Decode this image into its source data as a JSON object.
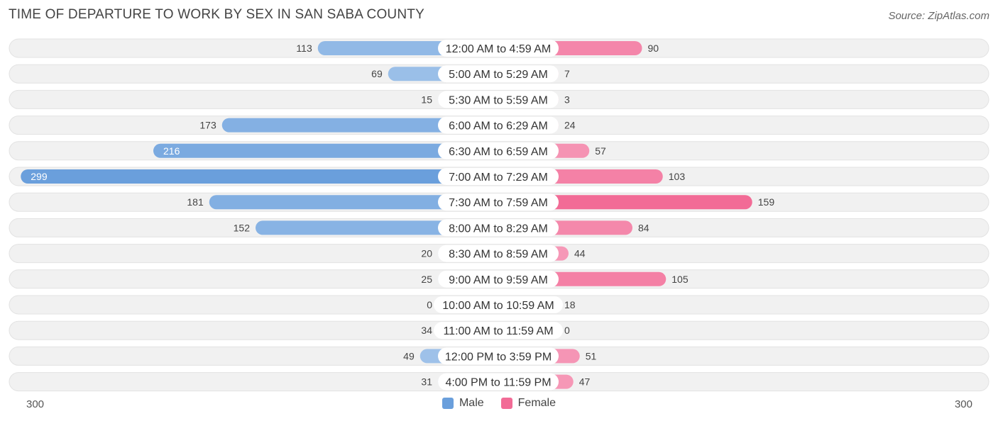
{
  "chart_data": {
    "type": "bar",
    "orientation": "horizontal-diverging",
    "title": "TIME OF DEPARTURE TO WORK BY SEX IN SAN SABA COUNTY",
    "source": "Source: ZipAtlas.com",
    "categories": [
      "12:00 AM to 4:59 AM",
      "5:00 AM to 5:29 AM",
      "5:30 AM to 5:59 AM",
      "6:00 AM to 6:29 AM",
      "6:30 AM to 6:59 AM",
      "7:00 AM to 7:29 AM",
      "7:30 AM to 7:59 AM",
      "8:00 AM to 8:29 AM",
      "8:30 AM to 8:59 AM",
      "9:00 AM to 9:59 AM",
      "10:00 AM to 10:59 AM",
      "11:00 AM to 11:59 AM",
      "12:00 PM to 3:59 PM",
      "4:00 PM to 11:59 PM"
    ],
    "series": [
      {
        "name": "Male",
        "values": [
          113,
          69,
          15,
          173,
          216,
          299,
          181,
          152,
          20,
          25,
          0,
          34,
          49,
          31
        ]
      },
      {
        "name": "Female",
        "values": [
          90,
          7,
          3,
          24,
          57,
          103,
          159,
          84,
          44,
          105,
          18,
          0,
          51,
          47
        ]
      }
    ],
    "axis": {
      "left_label": "300",
      "right_label": "300",
      "max": 300
    },
    "legend_position": "bottom-center",
    "colors": {
      "male_dark": "#6a9fdc",
      "male_light": "#a8c8ec",
      "female_dark": "#f26b96",
      "female_light": "#f7a9c3",
      "track": "#f1f1f1"
    }
  },
  "legend": {
    "male": "Male",
    "female": "Female"
  }
}
